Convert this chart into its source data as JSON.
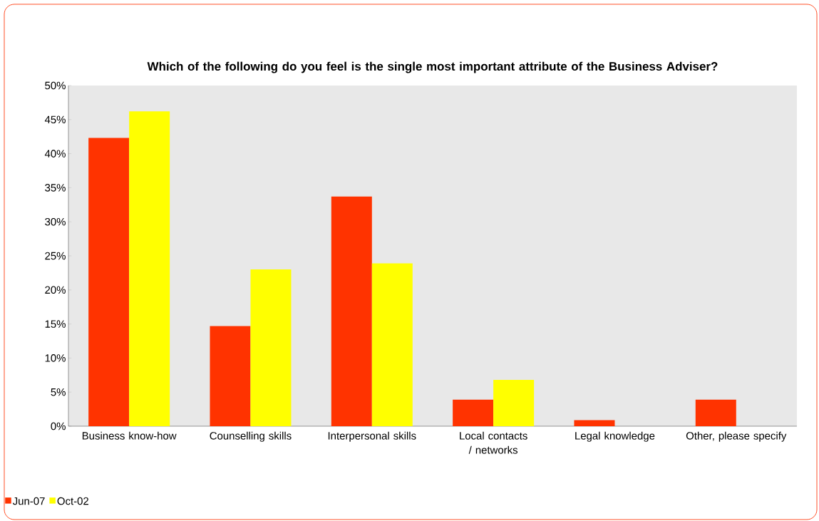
{
  "chart_data": {
    "type": "bar",
    "title": "Which of the following do you feel is the single most important attribute of the Business Adviser?",
    "categories": [
      "Business know-how",
      "Counselling skills",
      "Interpersonal skills",
      "Local contacts / networks",
      "Legal knowledge",
      "Other, please specify"
    ],
    "series": [
      {
        "name": "Jun-07",
        "color": "#ff3300",
        "values": [
          42.3,
          14.7,
          33.7,
          3.9,
          0.9,
          3.9
        ]
      },
      {
        "name": "Oct-02",
        "color": "#ffff00",
        "values": [
          46.2,
          23.0,
          23.9,
          6.8,
          0,
          0
        ]
      }
    ],
    "ylim": [
      0,
      50
    ],
    "yticks": [
      {
        "value": 0,
        "label": "0%"
      },
      {
        "value": 5,
        "label": "5%"
      },
      {
        "value": 10,
        "label": "10%"
      },
      {
        "value": 15,
        "label": "15%"
      },
      {
        "value": 20,
        "label": "20%"
      },
      {
        "value": 25,
        "label": "25%"
      },
      {
        "value": 30,
        "label": "30%"
      },
      {
        "value": 35,
        "label": "35%"
      },
      {
        "value": 40,
        "label": "40%"
      },
      {
        "value": 45,
        "label": "45%"
      },
      {
        "value": 50,
        "label": "50%"
      }
    ],
    "grid": false,
    "legend": "bottom left"
  }
}
